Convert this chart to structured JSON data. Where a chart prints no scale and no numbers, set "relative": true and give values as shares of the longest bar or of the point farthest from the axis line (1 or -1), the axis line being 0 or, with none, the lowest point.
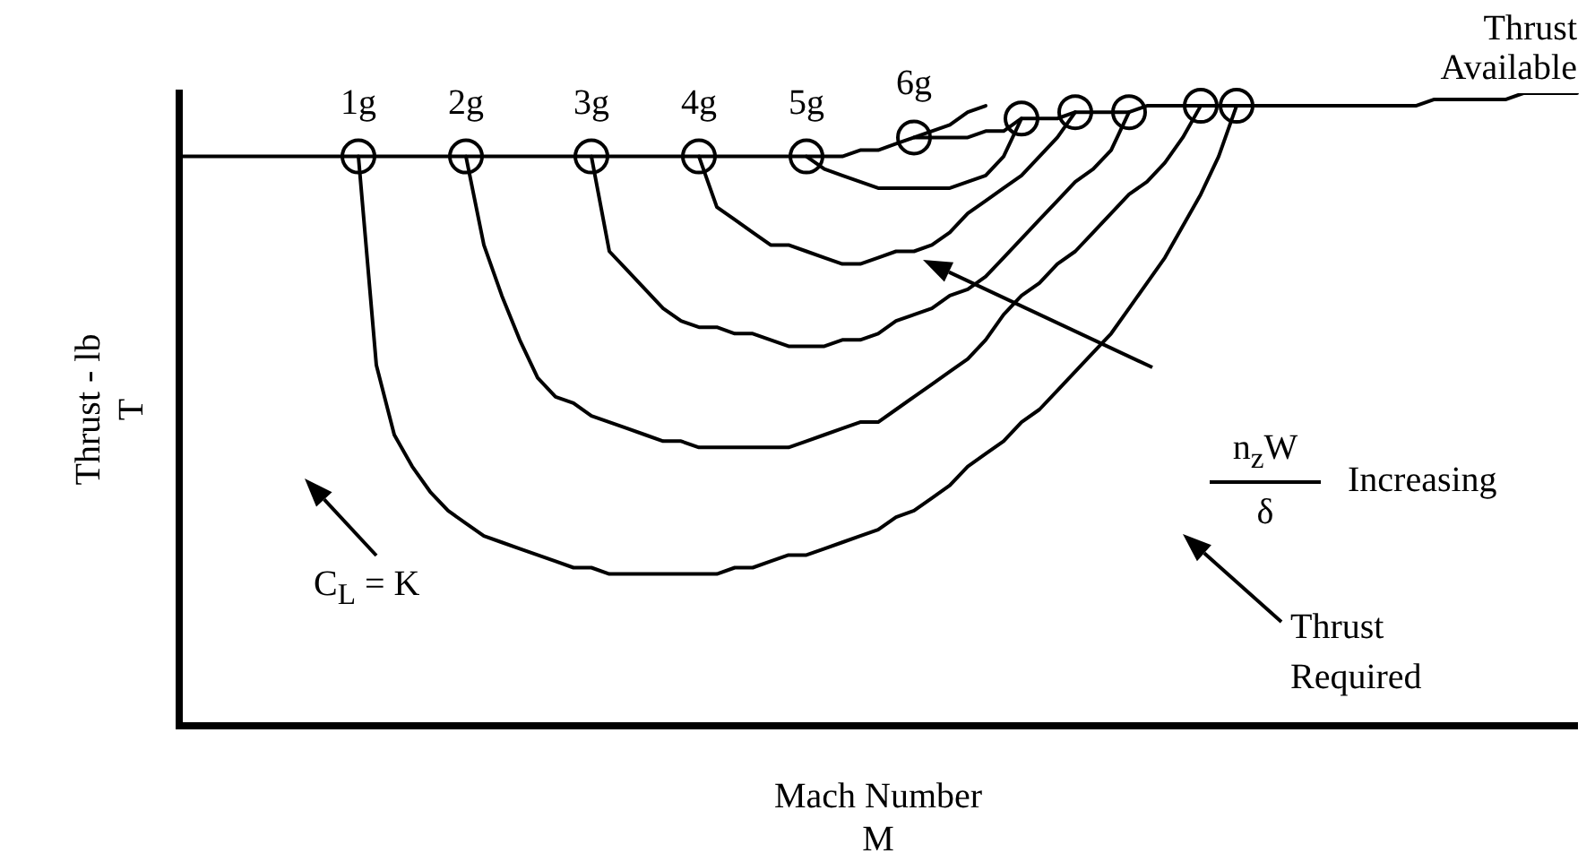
{
  "chart_data": {
    "type": "line",
    "relative": true,
    "xlabel": "Mach Number\nM",
    "ylabel": "Thrust - lb\nT",
    "marker": "none",
    "line_style": "solid",
    "grid": false,
    "legend": false,
    "tick_labels": false,
    "categories": [
      null,
      null,
      null,
      null,
      null,
      null,
      null,
      null,
      null,
      null,
      null,
      null,
      null,
      null,
      null,
      null,
      null,
      null,
      null,
      null,
      null,
      null,
      null,
      null,
      null,
      null,
      null,
      null,
      null,
      null,
      null,
      null,
      null,
      null,
      null,
      null,
      null,
      null,
      null,
      null,
      null,
      null,
      null,
      null,
      null,
      null,
      null,
      null,
      null,
      null,
      null,
      null,
      null,
      null,
      null,
      null,
      null,
      null,
      null,
      null,
      null,
      null,
      null,
      null,
      null,
      null,
      null,
      null,
      null,
      null,
      null,
      null,
      null,
      null,
      null,
      null,
      null,
      null,
      null
    ],
    "annotations": [
      "Thrust Required",
      "C$_{L}$ = K",
      "n$_{z}$W",
      "δ",
      "Increasing"
    ],
    "series": [
      {
        "name": "Thrust Available",
        "color": "#000000",
        "values": [
          0.9,
          0.9,
          0.9,
          0.9,
          0.9,
          0.9,
          0.9,
          0.9,
          0.9,
          0.9,
          0.9,
          0.9,
          0.9,
          0.9,
          0.9,
          0.9,
          0.9,
          0.9,
          0.9,
          0.9,
          0.9,
          0.9,
          0.9,
          0.9,
          0.9,
          0.9,
          0.9,
          0.9,
          0.9,
          0.9,
          0.9,
          0.9,
          0.9,
          0.9,
          0.9,
          0.9,
          0.9,
          0.9,
          0.91,
          0.91,
          0.92,
          0.93,
          0.93,
          0.93,
          0.93,
          0.94,
          0.94,
          0.96,
          0.96,
          0.96,
          0.97,
          0.97,
          0.97,
          0.97,
          0.98,
          0.98,
          0.98,
          0.98,
          0.98,
          0.98,
          0.98,
          0.98,
          0.98,
          0.98,
          0.98,
          0.98,
          0.98,
          0.98,
          0.98,
          0.98,
          0.99,
          0.99,
          0.99,
          0.99,
          0.99,
          1,
          1,
          1,
          1
        ]
      },
      {
        "name": "1g",
        "color": "#000000",
        "values": [
          null,
          null,
          null,
          null,
          null,
          null,
          null,
          null,
          null,
          null,
          0.9,
          0.57,
          0.46,
          0.41,
          0.37,
          0.34,
          0.32,
          0.3,
          0.29,
          0.28,
          0.27,
          0.26,
          0.25,
          0.25,
          0.24,
          0.24,
          0.24,
          0.24,
          0.24,
          0.24,
          0.24,
          0.25,
          0.25,
          0.26,
          0.27,
          0.27,
          0.28,
          0.29,
          0.3,
          0.31,
          0.33,
          0.34,
          0.36,
          0.38,
          0.41,
          0.43,
          0.45,
          0.48,
          0.5,
          0.53,
          0.56,
          0.59,
          0.62,
          0.66,
          0.7,
          0.74,
          0.79,
          0.84,
          0.9,
          0.98,
          null,
          null,
          null,
          null,
          null,
          null,
          null,
          null,
          null,
          null,
          null,
          null,
          null,
          null,
          null,
          null,
          null,
          null,
          null
        ]
      },
      {
        "name": "2g",
        "color": "#000000",
        "values": [
          null,
          null,
          null,
          null,
          null,
          null,
          null,
          null,
          null,
          null,
          null,
          null,
          null,
          null,
          null,
          null,
          0.9,
          0.76,
          0.68,
          0.61,
          0.55,
          0.52,
          0.51,
          0.49,
          0.48,
          0.47,
          0.46,
          0.45,
          0.45,
          0.44,
          0.44,
          0.44,
          0.44,
          0.44,
          0.44,
          0.45,
          0.46,
          0.47,
          0.48,
          0.48,
          0.5,
          0.52,
          0.54,
          0.56,
          0.58,
          0.61,
          0.65,
          0.68,
          0.7,
          0.73,
          0.75,
          0.78,
          0.81,
          0.84,
          0.86,
          0.89,
          0.93,
          0.98,
          null,
          null,
          null,
          null,
          null,
          null,
          null,
          null,
          null,
          null,
          null,
          null,
          null,
          null,
          null,
          null,
          null,
          null,
          null,
          null,
          null
        ]
      },
      {
        "name": "3g",
        "color": "#000000",
        "values": [
          null,
          null,
          null,
          null,
          null,
          null,
          null,
          null,
          null,
          null,
          null,
          null,
          null,
          null,
          null,
          null,
          null,
          null,
          null,
          null,
          null,
          null,
          null,
          0.9,
          0.75,
          0.72,
          0.69,
          0.66,
          0.64,
          0.63,
          0.63,
          0.62,
          0.62,
          0.61,
          0.6,
          0.6,
          0.6,
          0.61,
          0.61,
          0.62,
          0.64,
          0.65,
          0.66,
          0.68,
          0.69,
          0.71,
          0.74,
          0.77,
          0.8,
          0.83,
          0.86,
          0.88,
          0.91,
          0.97,
          null,
          null,
          null,
          null,
          null,
          null,
          null,
          null,
          null,
          null,
          null,
          null,
          null,
          null,
          null,
          null,
          null,
          null,
          null,
          null,
          null,
          null,
          null,
          null,
          null
        ]
      },
      {
        "name": "4g",
        "color": "#000000",
        "values": [
          null,
          null,
          null,
          null,
          null,
          null,
          null,
          null,
          null,
          null,
          null,
          null,
          null,
          null,
          null,
          null,
          null,
          null,
          null,
          null,
          null,
          null,
          null,
          null,
          null,
          null,
          null,
          null,
          null,
          0.9,
          0.82,
          0.8,
          0.78,
          0.76,
          0.76,
          0.75,
          0.74,
          0.73,
          0.73,
          0.74,
          0.75,
          0.75,
          0.76,
          0.78,
          0.81,
          0.83,
          0.85,
          0.87,
          0.9,
          0.93,
          0.97,
          null,
          null,
          null,
          null,
          null,
          null,
          null,
          null,
          null,
          null,
          null,
          null,
          null,
          null,
          null,
          null,
          null,
          null,
          null,
          null,
          null,
          null,
          null,
          null,
          null,
          null,
          null,
          null
        ]
      },
      {
        "name": "5g",
        "color": "#000000",
        "values": [
          null,
          null,
          null,
          null,
          null,
          null,
          null,
          null,
          null,
          null,
          null,
          null,
          null,
          null,
          null,
          null,
          null,
          null,
          null,
          null,
          null,
          null,
          null,
          null,
          null,
          null,
          null,
          null,
          null,
          null,
          null,
          null,
          null,
          null,
          null,
          0.9,
          0.88,
          0.87,
          0.86,
          0.85,
          0.85,
          0.85,
          0.85,
          0.85,
          0.86,
          0.87,
          0.9,
          0.96,
          null,
          null,
          null,
          null,
          null,
          null,
          null,
          null,
          null,
          null,
          null,
          null,
          null,
          null,
          null,
          null,
          null,
          null,
          null,
          null,
          null,
          null,
          null,
          null,
          null,
          null,
          null,
          null,
          null,
          null,
          null
        ]
      },
      {
        "name": "6g",
        "color": "#000000",
        "values": [
          null,
          null,
          null,
          null,
          null,
          null,
          null,
          null,
          null,
          null,
          null,
          null,
          null,
          null,
          null,
          null,
          null,
          null,
          null,
          null,
          null,
          null,
          null,
          null,
          null,
          null,
          null,
          null,
          null,
          null,
          null,
          null,
          null,
          null,
          null,
          null,
          null,
          null,
          null,
          null,
          null,
          0.93,
          0.94,
          0.95,
          0.97,
          0.98,
          null,
          null,
          null,
          null,
          null,
          null,
          null,
          null,
          null,
          null,
          null,
          null,
          null,
          null,
          null,
          null,
          null,
          null,
          null,
          null,
          null,
          null,
          null,
          null,
          null,
          null,
          null,
          null,
          null,
          null,
          null,
          null,
          null
        ]
      }
    ]
  }
}
